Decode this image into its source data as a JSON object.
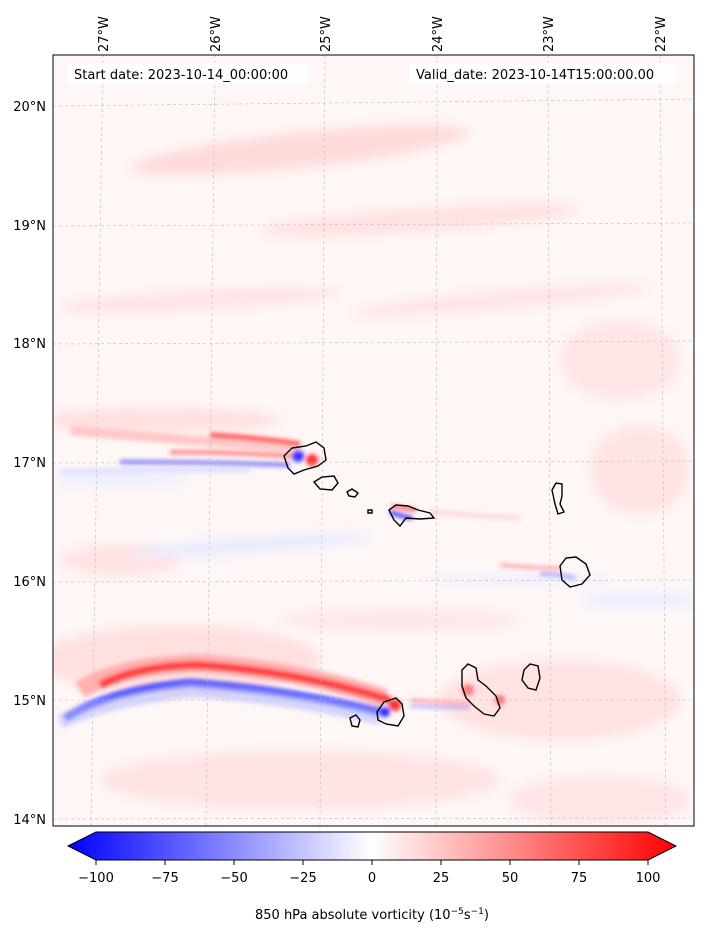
{
  "map": {
    "start_label": "Start date: 2023-10-14_00:00:00",
    "valid_label": "Valid_date: 2023-10-14T15:00:00.00",
    "lon_ticks": [
      "27°W",
      "26°W",
      "25°W",
      "24°W",
      "23°W",
      "22°W"
    ],
    "lat_ticks": [
      "20°N",
      "19°N",
      "18°N",
      "17°N",
      "16°N",
      "15°N",
      "14°N"
    ]
  },
  "colorbar": {
    "ticks": [
      "−100",
      "−75",
      "−50",
      "−25",
      "0",
      "25",
      "50",
      "75",
      "100"
    ],
    "label_main": "850 hPa absolute vorticity (10",
    "label_sup1": "−5",
    "label_mid": "s",
    "label_sup2": "−1",
    "label_end": ")",
    "min": -100,
    "max": 100,
    "colors": {
      "negative": "#0000ff",
      "zero": "#ffffff",
      "positive": "#ff0000"
    }
  }
}
